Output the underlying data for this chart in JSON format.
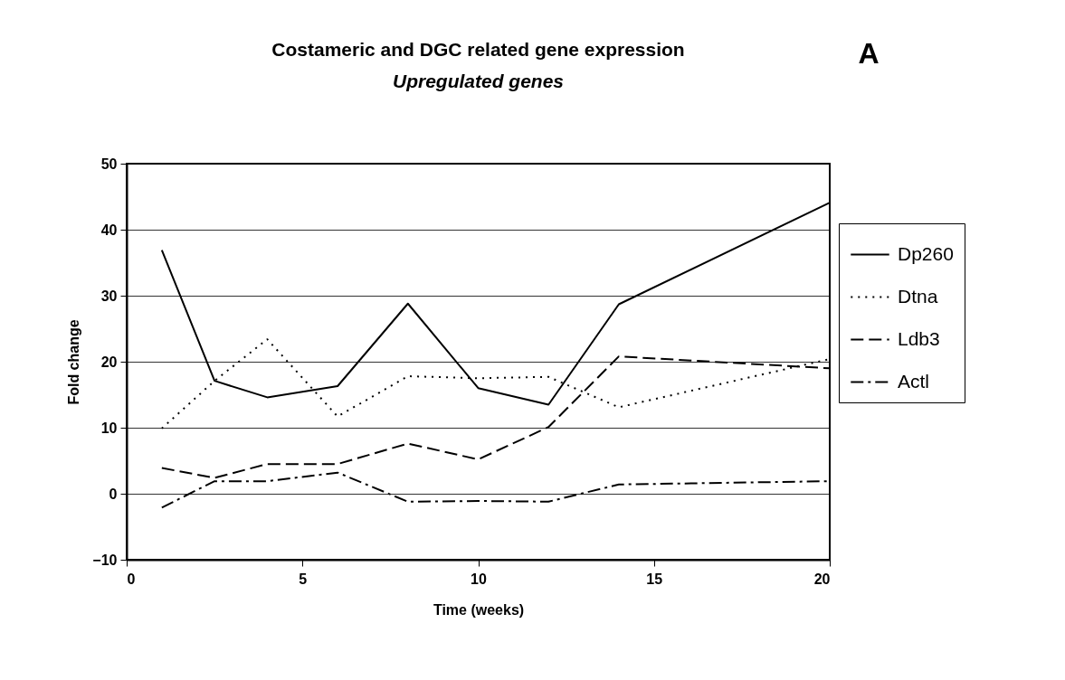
{
  "chart_data": {
    "type": "line",
    "title": "Costameric and DGC related gene expression",
    "subtitle": "Upregulated genes",
    "xlabel": "Time (weeks)",
    "ylabel": "Fold change",
    "annotations": [
      "A"
    ],
    "x": [
      1,
      2.5,
      4,
      6,
      8,
      10,
      12,
      14,
      20
    ],
    "series": [
      {
        "name": "Dp260",
        "color": "#000000",
        "line_style": "solid",
        "values": [
          36.9,
          17.1,
          14.6,
          16.3,
          28.8,
          16.0,
          13.5,
          28.7,
          44.1
        ]
      },
      {
        "name": "Dtna",
        "color": "#000000",
        "line_style": "dotted",
        "values": [
          9.9,
          17.1,
          23.4,
          11.7,
          17.8,
          17.5,
          17.7,
          13.1,
          20.4
        ]
      },
      {
        "name": "Ldb3",
        "color": "#000000",
        "line_style": "dashed",
        "values": [
          3.9,
          2.4,
          4.5,
          4.5,
          7.6,
          5.2,
          10.1,
          20.8,
          19.0
        ]
      },
      {
        "name": "Actl",
        "color": "#000000",
        "line_style": "dashdot",
        "values": [
          -2.1,
          1.9,
          1.9,
          3.2,
          -1.2,
          -1.1,
          -1.2,
          1.4,
          1.9
        ]
      }
    ],
    "xlim": [
      0,
      20
    ],
    "xticks": [
      0,
      5,
      10,
      15,
      20
    ],
    "ylim": [
      -10,
      50
    ],
    "yticks": [
      -10,
      0,
      10,
      20,
      30,
      40,
      50
    ],
    "grid": "y",
    "legend": "right",
    "marker": "none"
  }
}
